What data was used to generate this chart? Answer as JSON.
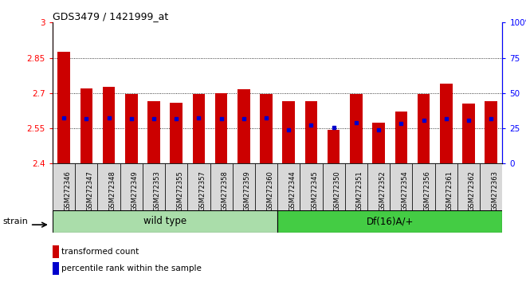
{
  "title": "GDS3479 / 1421999_at",
  "samples": [
    "GSM272346",
    "GSM272347",
    "GSM272348",
    "GSM272349",
    "GSM272353",
    "GSM272355",
    "GSM272357",
    "GSM272358",
    "GSM272359",
    "GSM272360",
    "GSM272344",
    "GSM272345",
    "GSM272350",
    "GSM272351",
    "GSM272352",
    "GSM272354",
    "GSM272356",
    "GSM272361",
    "GSM272362",
    "GSM272363"
  ],
  "bar_values": [
    2.875,
    2.72,
    2.725,
    2.695,
    2.665,
    2.66,
    2.695,
    2.7,
    2.715,
    2.695,
    2.665,
    2.665,
    2.545,
    2.695,
    2.575,
    2.62,
    2.695,
    2.74,
    2.655,
    2.665
  ],
  "percentile_values": [
    2.595,
    2.59,
    2.595,
    2.59,
    2.59,
    2.59,
    2.595,
    2.59,
    2.59,
    2.595,
    2.545,
    2.565,
    2.555,
    2.575,
    2.545,
    2.57,
    2.585,
    2.59,
    2.585,
    2.59
  ],
  "wild_type_count": 10,
  "df16_count": 10,
  "ymin": 2.4,
  "ymax": 3.0,
  "bar_color": "#cc0000",
  "dot_color": "#0000cc",
  "grid_values": [
    2.55,
    2.7,
    2.85
  ],
  "wt_label": "wild type",
  "df_label": "Df(16)A/+",
  "strain_label": "strain",
  "legend1": "transformed count",
  "legend2": "percentile rank within the sample",
  "wt_green": "#aaddaa",
  "df_green": "#44cc44",
  "tick_bg": "#d8d8d8"
}
